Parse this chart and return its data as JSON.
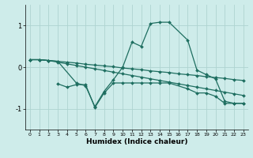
{
  "bg_color": "#ceecea",
  "grid_color": "#aed4d0",
  "line_color": "#1e6e60",
  "xlabel": "Humidex (Indice chaleur)",
  "xlim": [
    -0.5,
    23.5
  ],
  "ylim": [
    -1.5,
    1.5
  ],
  "yticks": [
    -1,
    0,
    1
  ],
  "xticks": [
    0,
    1,
    2,
    3,
    4,
    5,
    6,
    7,
    8,
    9,
    10,
    11,
    12,
    13,
    14,
    15,
    16,
    17,
    18,
    19,
    20,
    21,
    22,
    23
  ],
  "series": [
    {
      "x": [
        0,
        1,
        2,
        3,
        4,
        5,
        6,
        7,
        8,
        9,
        10,
        11,
        12,
        13,
        14,
        15,
        16,
        17,
        18,
        19,
        20,
        21,
        22,
        23
      ],
      "y": [
        0.18,
        0.18,
        0.16,
        0.14,
        0.12,
        0.1,
        0.07,
        0.05,
        0.03,
        0.01,
        -0.02,
        -0.04,
        -0.06,
        -0.09,
        -0.11,
        -0.13,
        -0.16,
        -0.18,
        -0.2,
        -0.23,
        -0.25,
        -0.27,
        -0.3,
        -0.32
      ]
    },
    {
      "x": [
        0,
        1,
        2,
        3,
        4,
        5,
        6,
        7,
        8,
        9,
        10,
        11,
        12,
        13,
        14,
        15,
        16,
        17,
        18,
        19,
        20,
        21,
        22,
        23
      ],
      "y": [
        0.18,
        0.18,
        0.16,
        0.12,
        0.08,
        0.04,
        0.0,
        -0.04,
        -0.08,
        -0.12,
        -0.16,
        -0.2,
        -0.24,
        -0.28,
        -0.32,
        -0.36,
        -0.4,
        -0.44,
        -0.48,
        -0.52,
        -0.56,
        -0.6,
        -0.64,
        -0.68
      ]
    },
    {
      "x": [
        0,
        1,
        2,
        3,
        5,
        6,
        7,
        8,
        9,
        10,
        11,
        12,
        13,
        14,
        15,
        17,
        18,
        19,
        20,
        21,
        22,
        23
      ],
      "y": [
        0.18,
        0.18,
        0.16,
        0.14,
        -0.38,
        -0.45,
        -0.95,
        -0.58,
        -0.3,
        0.0,
        0.6,
        0.5,
        1.05,
        1.08,
        1.08,
        0.65,
        -0.07,
        -0.18,
        -0.28,
        -0.82,
        -0.87,
        -0.87
      ]
    },
    {
      "x": [
        3,
        4,
        5,
        6,
        7,
        8,
        9,
        10,
        11,
        12,
        13,
        14,
        15,
        17,
        18,
        19,
        20,
        21,
        22,
        23
      ],
      "y": [
        -0.4,
        -0.48,
        -0.42,
        -0.42,
        -0.97,
        -0.62,
        -0.38,
        -0.38,
        -0.38,
        -0.38,
        -0.38,
        -0.38,
        -0.38,
        -0.52,
        -0.62,
        -0.62,
        -0.7,
        -0.87,
        -0.87,
        -0.87
      ]
    }
  ]
}
